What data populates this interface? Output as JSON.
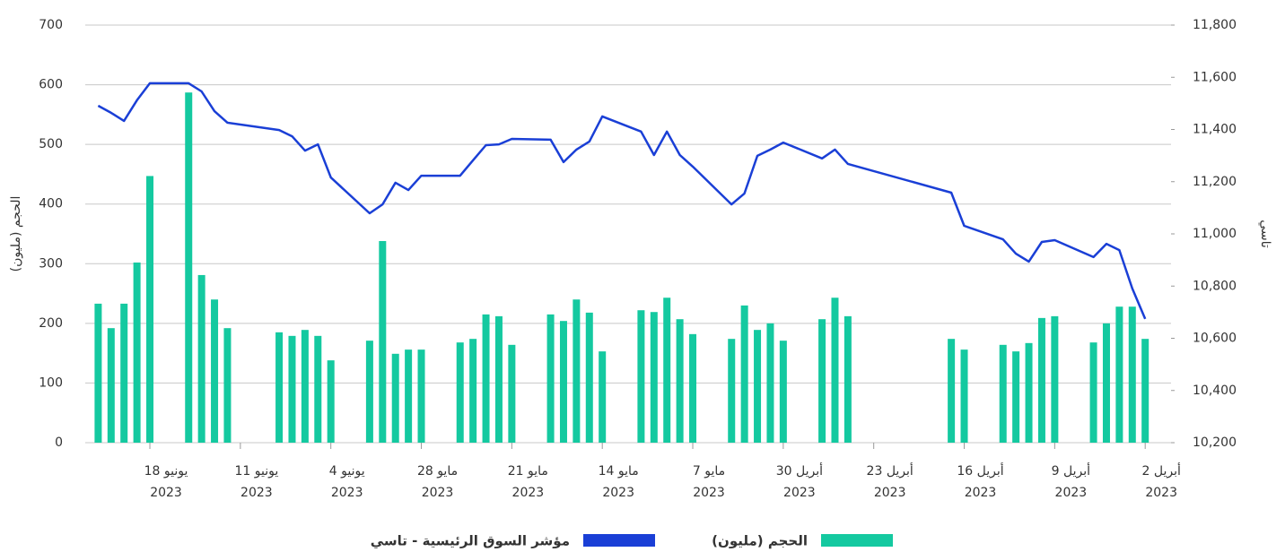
{
  "chart_data": {
    "type": "combo",
    "x_type": "date",
    "x": [
      "2023-06-22",
      "2023-06-21",
      "2023-06-20",
      "2023-06-19",
      "2023-06-18",
      "2023-06-15",
      "2023-06-14",
      "2023-06-13",
      "2023-06-12",
      "2023-06-08",
      "2023-06-07",
      "2023-06-06",
      "2023-06-05",
      "2023-06-04",
      "2023-06-01",
      "2023-05-31",
      "2023-05-30",
      "2023-05-29",
      "2023-05-28",
      "2023-05-25",
      "2023-05-24",
      "2023-05-23",
      "2023-05-22",
      "2023-05-21",
      "2023-05-18",
      "2023-05-17",
      "2023-05-16",
      "2023-05-15",
      "2023-05-14",
      "2023-05-11",
      "2023-05-10",
      "2023-05-09",
      "2023-05-08",
      "2023-05-07",
      "2023-05-04",
      "2023-05-03",
      "2023-05-02",
      "2023-05-01",
      "2023-04-30",
      "2023-04-27",
      "2023-04-26",
      "2023-04-25",
      "2023-04-17",
      "2023-04-16",
      "2023-04-13",
      "2023-04-12",
      "2023-04-11",
      "2023-04-10",
      "2023-04-09",
      "2023-04-06",
      "2023-04-05",
      "2023-04-04",
      "2023-04-03",
      "2023-04-02"
    ],
    "series": [
      {
        "name": "الحجم (مليون)",
        "type": "bar",
        "color": "#14c9a0",
        "values": [
          233,
          192,
          233,
          302,
          447,
          587,
          281,
          240,
          192,
          185,
          179,
          189,
          179,
          138,
          171,
          338,
          149,
          156,
          156,
          168,
          174,
          215,
          212,
          164,
          215,
          204,
          240,
          218,
          153,
          222,
          219,
          243,
          207,
          182,
          174,
          230,
          189,
          200,
          171,
          207,
          243,
          212,
          174,
          156,
          164,
          153,
          167,
          209,
          212,
          168,
          200,
          228,
          228,
          174
        ]
      },
      {
        "name": "مؤشر السوق الرئيسية - تاسي",
        "type": "line",
        "axis": "y2",
        "color": "#1a3fd6",
        "values": [
          11491,
          11464,
          11433,
          11512,
          11577,
          11577,
          11546,
          11470,
          11426,
          11398,
          11374,
          11319,
          11343,
          11216,
          11079,
          11113,
          11196,
          11168,
          11223,
          11223,
          11282,
          11340,
          11343,
          11364,
          11361,
          11275,
          11323,
          11354,
          11450,
          11392,
          11302,
          11392,
          11302,
          11258,
          11113,
          11155,
          11299,
          11323,
          11350,
          11289,
          11323,
          11268,
          11158,
          11031,
          10979,
          10924,
          10894,
          10969,
          10976,
          10911,
          10962,
          10938,
          10791,
          10674
        ]
      }
    ],
    "xlim": [
      "2023-06-23",
      "2023-03-31"
    ],
    "xticks": [
      {
        "value": "2023-06-18",
        "label": [
          "18 يونيو",
          "2023"
        ]
      },
      {
        "value": "2023-06-11",
        "label": [
          "11 يونيو",
          "2023"
        ]
      },
      {
        "value": "2023-06-04",
        "label": [
          "4 يونيو",
          "2023"
        ]
      },
      {
        "value": "2023-05-28",
        "label": [
          "28 مايو",
          "2023"
        ]
      },
      {
        "value": "2023-05-21",
        "label": [
          "21 مايو",
          "2023"
        ]
      },
      {
        "value": "2023-05-14",
        "label": [
          "14 مايو",
          "2023"
        ]
      },
      {
        "value": "2023-05-07",
        "label": [
          "7 مايو",
          "2023"
        ]
      },
      {
        "value": "2023-04-30",
        "label": [
          "30 أبريل",
          "2023"
        ]
      },
      {
        "value": "2023-04-23",
        "label": [
          "23 أبريل",
          "2023"
        ]
      },
      {
        "value": "2023-04-16",
        "label": [
          "16 أبريل",
          "2023"
        ]
      },
      {
        "value": "2023-04-09",
        "label": [
          "9 أبريل",
          "2023"
        ]
      },
      {
        "value": "2023-04-02",
        "label": [
          "2 أبريل",
          "2023"
        ]
      }
    ],
    "ylim": [
      0,
      700
    ],
    "yticks": [
      0,
      100,
      200,
      300,
      400,
      500,
      600,
      700
    ],
    "y2lim": [
      10200,
      11800
    ],
    "y2ticks": [
      {
        "value": 10200,
        "label": "10,200"
      },
      {
        "value": 10400,
        "label": "10,400"
      },
      {
        "value": 10600,
        "label": "10,600"
      },
      {
        "value": 10800,
        "label": "10,800"
      },
      {
        "value": 11000,
        "label": "11,000"
      },
      {
        "value": 11200,
        "label": "11,200"
      },
      {
        "value": 11400,
        "label": "11,400"
      },
      {
        "value": 11600,
        "label": "11,600"
      },
      {
        "value": 11800,
        "label": "11,800"
      }
    ],
    "ylabel": "الحجم (مليون)",
    "y2label": "تاسي",
    "grid": true,
    "legend": "bottom"
  }
}
